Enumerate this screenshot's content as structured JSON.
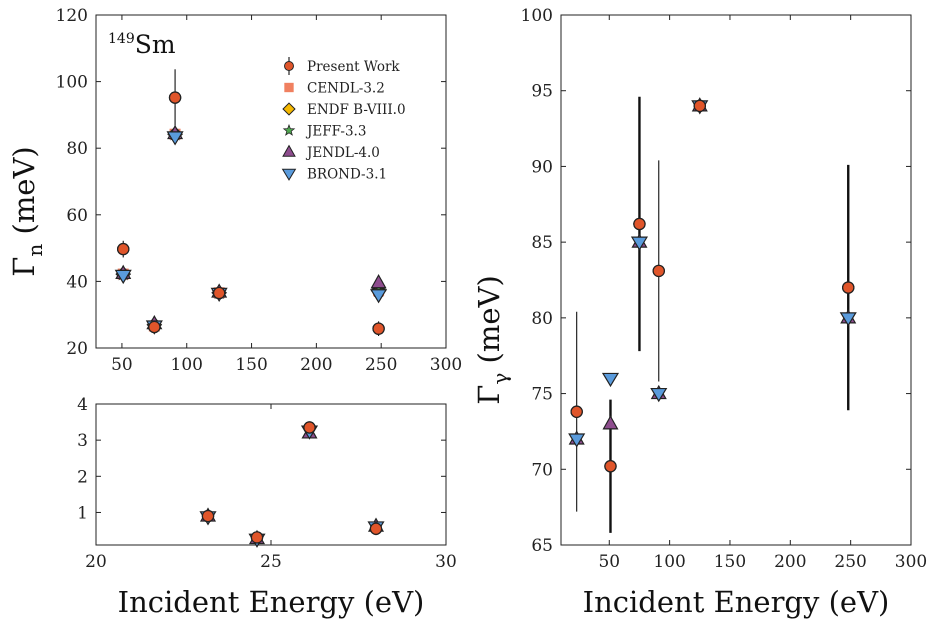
{
  "colors": {
    "present": "#e0552a",
    "cendl": "#f08060",
    "endf": "#f5b800",
    "jeff": "#4fa84f",
    "jendl": "#8e4d8e",
    "brond": "#5a9bdc",
    "axis": "#222222"
  },
  "chart_data": [
    {
      "id": "top-left",
      "type": "scatter",
      "annotation": {
        "sup": "149",
        "main": "Sm"
      },
      "ylabel": {
        "main": "Γ",
        "sub": "n",
        "rest": " (meV)"
      },
      "xlim": [
        30,
        300
      ],
      "ylim": [
        20,
        120
      ],
      "xticks": [
        50,
        100,
        150,
        200,
        250,
        300
      ],
      "yticks": [
        20,
        40,
        60,
        80,
        100,
        120
      ],
      "legend": {
        "placement": "top-right",
        "entries": [
          {
            "key": "present",
            "label": "Present Work"
          },
          {
            "key": "cendl",
            "label": "CENDL-3.2"
          },
          {
            "key": "endf",
            "label": "ENDF B-VIII.0"
          },
          {
            "key": "jeff",
            "label": "JEFF-3.3"
          },
          {
            "key": "jendl",
            "label": "JENDL-4.0"
          },
          {
            "key": "brond",
            "label": "BROND-3.1"
          }
        ]
      },
      "series": [
        {
          "key": "present",
          "points": [
            {
              "x": 51,
              "y": 49.7,
              "err": 2.5
            },
            {
              "x": 75,
              "y": 26.3,
              "err": 1.0
            },
            {
              "x": 91,
              "y": 95.2,
              "err": 8.5
            },
            {
              "x": 125,
              "y": 36.5,
              "err": 1.0
            },
            {
              "x": 248,
              "y": 25.8,
              "err": 2.2
            }
          ]
        },
        {
          "key": "cendl",
          "points": [
            {
              "x": 51,
              "y": 42.2
            },
            {
              "x": 75,
              "y": 26.6
            },
            {
              "x": 91,
              "y": 84.2
            },
            {
              "x": 125,
              "y": 36.6
            },
            {
              "x": 248,
              "y": 37.2
            }
          ]
        },
        {
          "key": "endf",
          "points": [
            {
              "x": 51,
              "y": 42.2
            },
            {
              "x": 75,
              "y": 27.0
            },
            {
              "x": 91,
              "y": 84.2
            },
            {
              "x": 125,
              "y": 36.6
            },
            {
              "x": 248,
              "y": 37.2
            }
          ]
        },
        {
          "key": "jeff",
          "points": [
            {
              "x": 51,
              "y": 42.2
            },
            {
              "x": 75,
              "y": 27.3
            },
            {
              "x": 91,
              "y": 84.2
            },
            {
              "x": 125,
              "y": 36.6
            },
            {
              "x": 248,
              "y": 37.2
            }
          ]
        },
        {
          "key": "jendl",
          "points": [
            {
              "x": 51,
              "y": 42.4
            },
            {
              "x": 75,
              "y": 27.3
            },
            {
              "x": 91,
              "y": 84.4
            },
            {
              "x": 125,
              "y": 36.8
            },
            {
              "x": 248,
              "y": 39.6
            }
          ]
        },
        {
          "key": "brond",
          "points": [
            {
              "x": 51,
              "y": 41.8
            },
            {
              "x": 75,
              "y": 26.6
            },
            {
              "x": 91,
              "y": 83.4
            },
            {
              "x": 125,
              "y": 36.4
            },
            {
              "x": 248,
              "y": 36.0
            }
          ]
        }
      ]
    },
    {
      "id": "bottom-left",
      "type": "scatter",
      "xlabel": "Incident Energy (eV)",
      "xlim": [
        20,
        30
      ],
      "ylim": [
        0.1,
        4
      ],
      "xticks": [
        20,
        25,
        30
      ],
      "yticks": [
        1,
        2,
        3,
        4
      ],
      "series": [
        {
          "key": "present",
          "points": [
            {
              "x": 23.2,
              "y": 0.9
            },
            {
              "x": 24.6,
              "y": 0.31
            },
            {
              "x": 26.1,
              "y": 3.35
            },
            {
              "x": 28.0,
              "y": 0.55
            }
          ]
        },
        {
          "key": "jendl",
          "points": [
            {
              "x": 23.2,
              "y": 0.9
            },
            {
              "x": 24.6,
              "y": 0.28
            },
            {
              "x": 26.1,
              "y": 3.2
            },
            {
              "x": 28.0,
              "y": 0.62
            }
          ]
        },
        {
          "key": "brond",
          "points": [
            {
              "x": 23.2,
              "y": 0.88
            },
            {
              "x": 24.6,
              "y": 0.26
            },
            {
              "x": 26.1,
              "y": 3.25
            },
            {
              "x": 28.0,
              "y": 0.6
            }
          ]
        }
      ]
    },
    {
      "id": "right",
      "type": "scatter",
      "xlabel": "Incident Energy (eV)",
      "ylabel": {
        "main": "Γ",
        "sub": "γ",
        "rest": " (meV)"
      },
      "xlim": [
        10,
        300
      ],
      "ylim": [
        65,
        100
      ],
      "xticks": [
        50,
        100,
        150,
        200,
        250,
        300
      ],
      "yticks": [
        65,
        70,
        75,
        80,
        85,
        90,
        95,
        100
      ],
      "series": [
        {
          "key": "present",
          "points": [
            {
              "x": 23,
              "y": 73.8,
              "err": 6.6
            },
            {
              "x": 51,
              "y": 70.2,
              "err": 4.4
            },
            {
              "x": 75,
              "y": 86.2,
              "err": 8.4
            },
            {
              "x": 91,
              "y": 83.1,
              "err": 7.3
            },
            {
              "x": 125,
              "y": 94.0,
              "err": 0.2
            },
            {
              "x": 248,
              "y": 82.0,
              "err": 8.1
            }
          ]
        },
        {
          "key": "jendl",
          "points": [
            {
              "x": 23,
              "y": 72.0
            },
            {
              "x": 51,
              "y": 73.0
            },
            {
              "x": 75,
              "y": 85.0
            },
            {
              "x": 91,
              "y": 75.0
            },
            {
              "x": 125,
              "y": 94.0
            },
            {
              "x": 248,
              "y": 80.0
            }
          ]
        },
        {
          "key": "brond",
          "points": [
            {
              "x": 23,
              "y": 72.0
            },
            {
              "x": 51,
              "y": 76.0
            },
            {
              "x": 75,
              "y": 85.0
            },
            {
              "x": 91,
              "y": 75.0
            },
            {
              "x": 125,
              "y": 94.0
            },
            {
              "x": 248,
              "y": 80.0
            }
          ]
        }
      ]
    }
  ]
}
